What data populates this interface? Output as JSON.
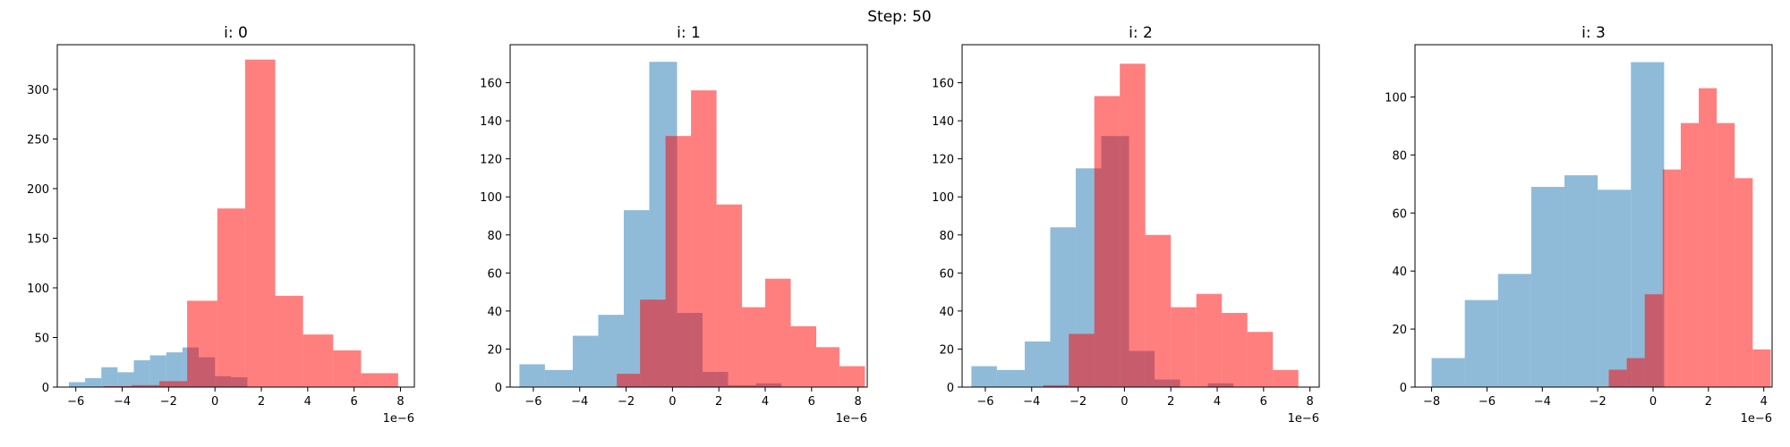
{
  "figure_title": "Step: 50",
  "colors": {
    "blue": "#1f77b4",
    "red": "#ff0000"
  },
  "chart_data": [
    {
      "type": "histogram",
      "title": "i: 0",
      "x_scale_label": "1e−6",
      "xlim": [
        -6.8,
        8.6
      ],
      "ylim": [
        0,
        345
      ],
      "xticks": [
        -6,
        -4,
        -2,
        0,
        2,
        4,
        6,
        8
      ],
      "yticks": [
        0,
        50,
        100,
        150,
        200,
        250,
        300
      ],
      "series": [
        {
          "color": "blue",
          "opacity": 0.5,
          "bars": [
            [
              -6.3,
              -5.6,
              5
            ],
            [
              -5.6,
              -4.9,
              9
            ],
            [
              -4.9,
              -4.2,
              20
            ],
            [
              -4.2,
              -3.5,
              15
            ],
            [
              -3.5,
              -2.8,
              27
            ],
            [
              -2.8,
              -2.1,
              32
            ],
            [
              -2.1,
              -1.4,
              35
            ],
            [
              -1.4,
              -0.7,
              40
            ],
            [
              -0.7,
              0.0,
              30
            ],
            [
              0.0,
              0.7,
              11
            ],
            [
              0.7,
              1.4,
              10
            ]
          ]
        },
        {
          "color": "red",
          "opacity": 0.5,
          "bars": [
            [
              -4.8,
              -3.6,
              1
            ],
            [
              -3.6,
              -2.4,
              2
            ],
            [
              -2.4,
              -1.2,
              6
            ],
            [
              -1.2,
              0.1,
              87
            ],
            [
              0.1,
              1.3,
              180
            ],
            [
              1.3,
              2.6,
              330
            ],
            [
              2.6,
              3.8,
              92
            ],
            [
              3.8,
              5.1,
              53
            ],
            [
              5.1,
              6.3,
              37
            ],
            [
              6.3,
              7.9,
              14
            ]
          ]
        }
      ]
    },
    {
      "type": "histogram",
      "title": "i: 1",
      "x_scale_label": "1e−6",
      "xlim": [
        -7.0,
        8.4
      ],
      "ylim": [
        0,
        180
      ],
      "xticks": [
        -6,
        -4,
        -2,
        0,
        2,
        4,
        6,
        8
      ],
      "yticks": [
        0,
        20,
        40,
        60,
        80,
        100,
        120,
        140,
        160
      ],
      "series": [
        {
          "color": "blue",
          "opacity": 0.5,
          "bars": [
            [
              -6.6,
              -5.5,
              12
            ],
            [
              -5.5,
              -4.3,
              9
            ],
            [
              -4.3,
              -3.2,
              27
            ],
            [
              -3.2,
              -2.1,
              38
            ],
            [
              -2.1,
              -1.0,
              93
            ],
            [
              -1.0,
              0.2,
              171
            ],
            [
              0.2,
              1.3,
              39
            ],
            [
              1.3,
              2.4,
              8
            ],
            [
              2.4,
              3.6,
              1
            ],
            [
              3.6,
              4.7,
              2
            ]
          ]
        },
        {
          "color": "red",
          "opacity": 0.5,
          "bars": [
            [
              -2.4,
              -1.4,
              7
            ],
            [
              -1.4,
              -0.3,
              46
            ],
            [
              -0.3,
              0.8,
              132
            ],
            [
              0.8,
              1.9,
              156
            ],
            [
              1.9,
              3.0,
              96
            ],
            [
              3.0,
              4.0,
              42
            ],
            [
              4.0,
              5.1,
              57
            ],
            [
              5.1,
              6.2,
              32
            ],
            [
              6.2,
              7.2,
              21
            ],
            [
              7.2,
              8.3,
              11
            ]
          ]
        }
      ]
    },
    {
      "type": "histogram",
      "title": "i: 2",
      "x_scale_label": "1e−6",
      "xlim": [
        -7.0,
        8.4
      ],
      "ylim": [
        0,
        180
      ],
      "xticks": [
        -6,
        -4,
        -2,
        0,
        2,
        4,
        6,
        8
      ],
      "yticks": [
        0,
        20,
        40,
        60,
        80,
        100,
        120,
        140,
        160
      ],
      "series": [
        {
          "color": "blue",
          "opacity": 0.5,
          "bars": [
            [
              -6.6,
              -5.5,
              11
            ],
            [
              -5.5,
              -4.3,
              9
            ],
            [
              -4.3,
              -3.2,
              24
            ],
            [
              -3.2,
              -2.1,
              84
            ],
            [
              -2.1,
              -1.0,
              115
            ],
            [
              -1.0,
              0.2,
              132
            ],
            [
              0.2,
              1.3,
              19
            ],
            [
              1.3,
              2.4,
              4
            ],
            [
              2.4,
              3.6,
              0
            ],
            [
              3.6,
              4.7,
              2
            ]
          ]
        },
        {
          "color": "red",
          "opacity": 0.5,
          "bars": [
            [
              -3.5,
              -2.4,
              1
            ],
            [
              -2.4,
              -1.3,
              28
            ],
            [
              -1.3,
              -0.2,
              153
            ],
            [
              -0.2,
              0.9,
              170
            ],
            [
              0.9,
              2.0,
              80
            ],
            [
              2.0,
              3.1,
              42
            ],
            [
              3.1,
              4.2,
              49
            ],
            [
              4.2,
              5.3,
              39
            ],
            [
              5.3,
              6.4,
              29
            ],
            [
              6.4,
              7.5,
              9
            ]
          ]
        }
      ]
    },
    {
      "type": "histogram",
      "title": "i: 3",
      "x_scale_label": "1e−6",
      "xlim": [
        -8.6,
        4.3
      ],
      "ylim": [
        0,
        118
      ],
      "xticks": [
        -8,
        -6,
        -4,
        -2,
        0,
        2,
        4
      ],
      "yticks": [
        0,
        20,
        40,
        60,
        80,
        100
      ],
      "series": [
        {
          "color": "blue",
          "opacity": 0.5,
          "bars": [
            [
              -8.0,
              -6.8,
              10
            ],
            [
              -6.8,
              -5.6,
              30
            ],
            [
              -5.6,
              -4.4,
              39
            ],
            [
              -4.4,
              -3.2,
              69
            ],
            [
              -3.2,
              -2.0,
              73
            ],
            [
              -2.0,
              -0.8,
              68
            ],
            [
              -0.8,
              0.4,
              112
            ]
          ]
        },
        {
          "color": "red",
          "opacity": 0.5,
          "bars": [
            [
              -1.6,
              -0.95,
              6
            ],
            [
              -0.95,
              -0.3,
              10
            ],
            [
              -0.3,
              0.35,
              32
            ],
            [
              0.35,
              1.0,
              75
            ],
            [
              1.0,
              1.65,
              91
            ],
            [
              1.65,
              2.3,
              103
            ],
            [
              2.3,
              2.95,
              91
            ],
            [
              2.95,
              3.6,
              72
            ],
            [
              3.6,
              4.25,
              13
            ]
          ]
        }
      ]
    }
  ]
}
